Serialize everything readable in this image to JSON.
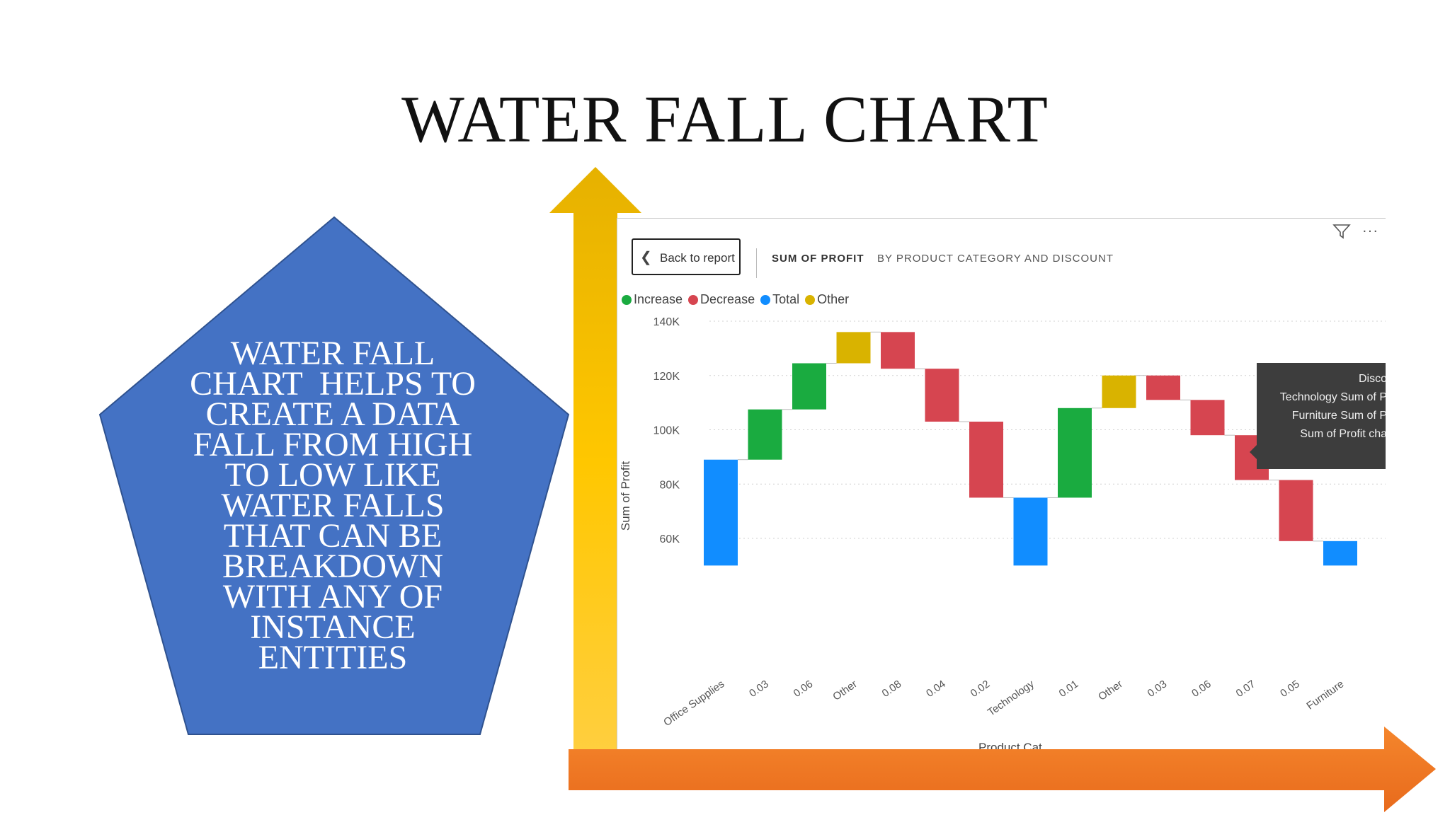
{
  "slide": {
    "title": "WATER FALL CHART",
    "pentagon_text": "WATER FALL CHART  HELPS TO CREATE A DATA FALL FROM HIGH TO LOW LIKE WATER FALLS THAT CAN BE BREAKDOWN WITH ANY OF INSTANCE ENTITIES",
    "colors": {
      "pentagon": "#4472C4",
      "arrow_up_top": "#E6B800",
      "arrow_up_bottom": "#FFCC33",
      "arrow_right": "#F07828"
    }
  },
  "report": {
    "back_label": "Back to report",
    "header_main": "SUM OF PROFIT",
    "header_sub": "BY PRODUCT CATEGORY AND DISCOUNT",
    "filter_icon": "filter-icon",
    "more_icon": "more-options-icon",
    "x_axis_title": "Product Cat...",
    "tooltip_lines": [
      "Disco",
      "Technology Sum of P",
      "Furniture Sum of P",
      "Sum of Profit cha"
    ]
  },
  "chart_data": {
    "type": "waterfall",
    "title": "",
    "ylabel": "Sum of Profit",
    "ylim": [
      50000,
      140000
    ],
    "yticks": [
      {
        "value": 60000,
        "label": "60K"
      },
      {
        "value": 80000,
        "label": "80K"
      },
      {
        "value": 100000,
        "label": "100K"
      },
      {
        "value": 120000,
        "label": "120K"
      },
      {
        "value": 140000,
        "label": "140K"
      }
    ],
    "grid": true,
    "legend_position": "top-left",
    "legend": [
      {
        "name": "Increase",
        "color": "#1AAB40"
      },
      {
        "name": "Decrease",
        "color": "#D64550"
      },
      {
        "name": "Total",
        "color": "#118DFF"
      },
      {
        "name": "Other",
        "color": "#D9B300"
      }
    ],
    "bars": [
      {
        "label": "Office Supplies",
        "kind": "Total",
        "start": 50000,
        "end": 89000
      },
      {
        "label": "0.03",
        "kind": "Increase",
        "start": 89000,
        "end": 107500
      },
      {
        "label": "0.06",
        "kind": "Increase",
        "start": 107500,
        "end": 124500
      },
      {
        "label": "Other",
        "kind": "Other",
        "start": 124500,
        "end": 136000
      },
      {
        "label": "0.08",
        "kind": "Decrease",
        "start": 136000,
        "end": 122500
      },
      {
        "label": "0.04",
        "kind": "Decrease",
        "start": 122500,
        "end": 103000
      },
      {
        "label": "0.02",
        "kind": "Decrease",
        "start": 103000,
        "end": 75000
      },
      {
        "label": "Technology",
        "kind": "Total",
        "start": 50000,
        "end": 75000
      },
      {
        "label": "0.01",
        "kind": "Increase",
        "start": 75000,
        "end": 108000
      },
      {
        "label": "Other",
        "kind": "Other",
        "start": 108000,
        "end": 120000
      },
      {
        "label": "0.03",
        "kind": "Decrease",
        "start": 120000,
        "end": 111000
      },
      {
        "label": "0.06",
        "kind": "Decrease",
        "start": 111000,
        "end": 98000
      },
      {
        "label": "0.07",
        "kind": "Decrease",
        "start": 98000,
        "end": 81500
      },
      {
        "label": "0.05",
        "kind": "Decrease",
        "start": 81500,
        "end": 59000
      },
      {
        "label": "Furniture",
        "kind": "Total",
        "start": 50000,
        "end": 59000
      }
    ]
  }
}
